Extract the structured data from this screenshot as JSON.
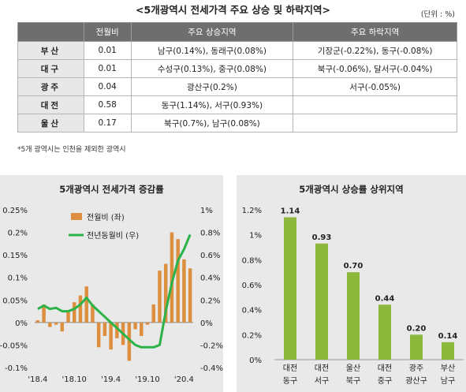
{
  "table": {
    "title": "<5개광역시 전세가격 주요 상승 및 하락지역>",
    "unit": "(단위 : %)",
    "headers": [
      "",
      "전월비",
      "주요 상승지역",
      "주요 하락지역"
    ],
    "rows": [
      {
        "region": "부산",
        "mom": "0.01",
        "up": "남구(0.14%), 동래구(0.08%)",
        "down": "기장군(-0.22%), 동구(-0.08%)"
      },
      {
        "region": "대구",
        "mom": "0.01",
        "up": "수성구(0.13%), 중구(0.08%)",
        "down": "북구(-0.06%), 달서구(-0.04%)"
      },
      {
        "region": "광주",
        "mom": "0.04",
        "up": "광산구(0.2%)",
        "down": "서구(-0.05%)"
      },
      {
        "region": "대전",
        "mom": "0.58",
        "up": "동구(1.14%), 서구(0.93%)",
        "down": ""
      },
      {
        "region": "울산",
        "mom": "0.17",
        "up": "북구(0.7%), 남구(0.08%)",
        "down": ""
      }
    ],
    "footnote": "*5개 광역시는 인천을 제외한 광역시"
  },
  "colors": {
    "bar_orange": "#dc8f3e",
    "line_green": "#2bb34a",
    "bar_green": "#8cb83c",
    "panel_bg": "#e9e9e9",
    "header_bg": "#6e6e6e"
  },
  "chart_data": [
    {
      "type": "bar+line",
      "title": "5개광역시 전세가격 증감률",
      "x_tick_labels": [
        "'18.4",
        "'18.10",
        "'19.4",
        "'19.10",
        "'20.4"
      ],
      "series": [
        {
          "name": "전월비 (좌)",
          "type": "bar",
          "axis": "left",
          "values": [
            0.005,
            0.04,
            -0.01,
            -0.005,
            -0.02,
            0.025,
            0.045,
            0.06,
            0.08,
            0.04,
            -0.055,
            -0.03,
            -0.06,
            -0.035,
            -0.05,
            -0.085,
            -0.015,
            -0.03,
            -0.005,
            0.04,
            0.115,
            0.13,
            0.2,
            0.185,
            0.14,
            0.12
          ]
        },
        {
          "name": "전년동월비 (우)",
          "type": "line",
          "axis": "right",
          "values": [
            0.12,
            0.15,
            0.12,
            0.13,
            0.1,
            0.1,
            0.12,
            0.16,
            0.22,
            0.15,
            0.1,
            0.05,
            0.0,
            -0.05,
            -0.1,
            -0.15,
            -0.2,
            -0.22,
            -0.22,
            -0.22,
            -0.2,
            0.1,
            0.35,
            0.55,
            0.65,
            0.78
          ]
        }
      ],
      "y_left": {
        "min": -0.1,
        "max": 0.25,
        "ticks": [
          "-0.1%",
          "-0.05%",
          "0%",
          "0.05%",
          "0.1%",
          "0.15%",
          "0.2%",
          "0.25%"
        ]
      },
      "y_right": {
        "min": -0.4,
        "max": 1.0,
        "ticks": [
          "-0.4%",
          "-0.2%",
          "0%",
          "0.2%",
          "0.4%",
          "0.6%",
          "0.8%",
          "1%"
        ]
      }
    },
    {
      "type": "bar",
      "title": "5개광역시 상승률 상위지역",
      "categories": [
        [
          "대전",
          "동구"
        ],
        [
          "대전",
          "서구"
        ],
        [
          "울산",
          "북구"
        ],
        [
          "대전",
          "중구"
        ],
        [
          "광주",
          "광산구"
        ],
        [
          "부산",
          "남구"
        ]
      ],
      "values": [
        1.14,
        0.93,
        0.7,
        0.44,
        0.2,
        0.14
      ],
      "data_labels": [
        "1.14",
        "0.93",
        "0.70",
        "0.44",
        "0.20",
        "0.14"
      ],
      "ylim": [
        0,
        1.2
      ],
      "y_ticks": [
        "0%",
        "0.2%",
        "0.4%",
        "0.6%",
        "0.8%",
        "1%",
        "1.2%"
      ]
    }
  ]
}
